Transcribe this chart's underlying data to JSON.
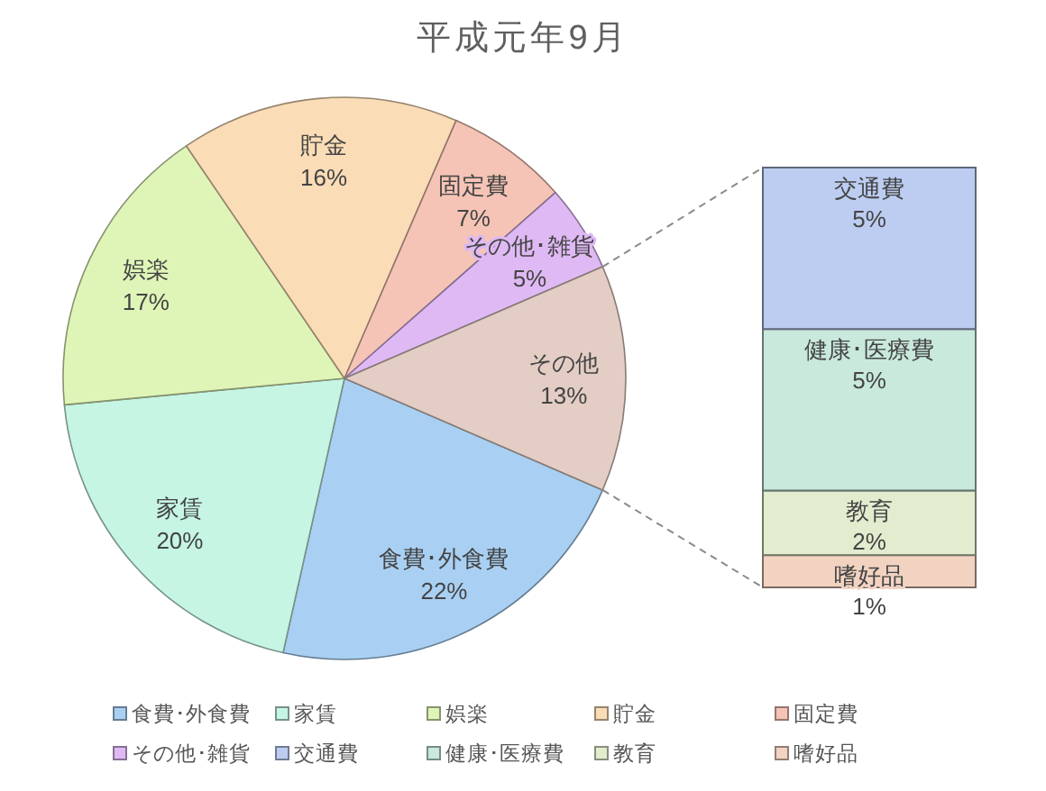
{
  "chart_data": [
    {
      "type": "pie",
      "title": "平成元年9月",
      "categories": [
        "食費･外食費",
        "家賃",
        "娯楽",
        "貯金",
        "固定費",
        "その他･雑貨",
        "その他"
      ],
      "values": [
        22,
        20,
        17,
        16,
        7,
        5,
        13
      ],
      "value_labels": [
        "22%",
        "20%",
        "17%",
        "16%",
        "7%",
        "5%",
        "13%"
      ],
      "colors": [
        "#a9d0f3",
        "#c6f5e4",
        "#dff5b8",
        "#fadcb6",
        "#f5c4b6",
        "#dfb9f4",
        "#e3cdc4"
      ],
      "legend": "bottom"
    },
    {
      "type": "bar",
      "stacked": true,
      "categories": [
        null
      ],
      "series": [
        {
          "name": "嗜好品",
          "color": "#f2d3c2",
          "values": [
            1
          ],
          "value_labels": [
            "1%"
          ]
        },
        {
          "name": "教育",
          "color": "#e2ecce",
          "values": [
            2
          ],
          "value_labels": [
            "2%"
          ]
        },
        {
          "name": "健康･医療費",
          "color": "#c8e9dc",
          "values": [
            5
          ],
          "value_labels": [
            "5%"
          ]
        },
        {
          "name": "交通費",
          "color": "#bccdf1",
          "values": [
            5
          ],
          "value_labels": [
            "5%"
          ]
        }
      ],
      "legend": "bottom"
    }
  ]
}
